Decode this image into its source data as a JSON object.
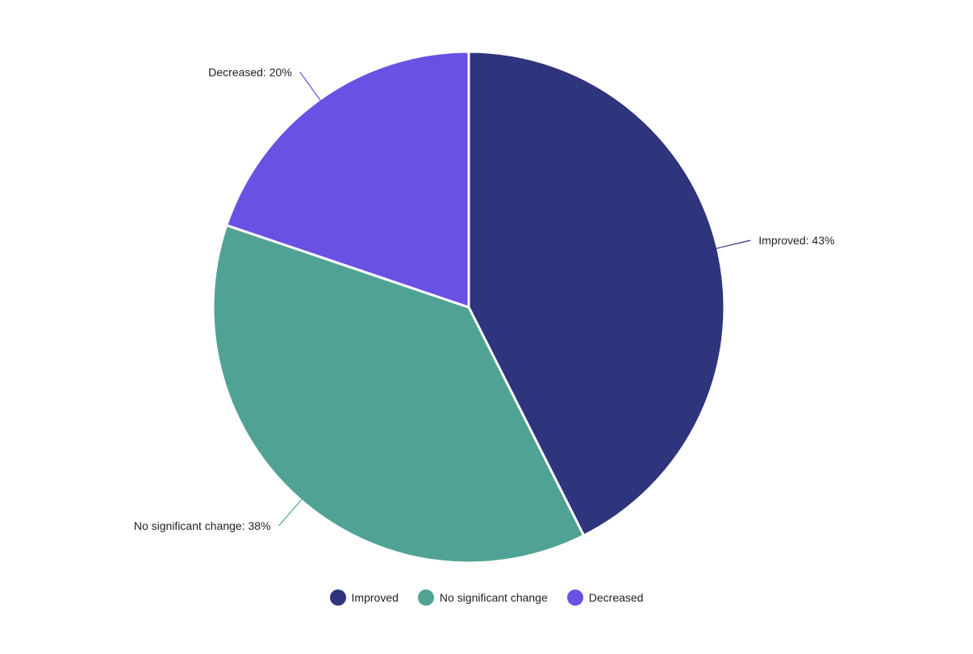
{
  "chart_data": {
    "type": "pie",
    "categories": [
      "Improved",
      "No significant change",
      "Decreased"
    ],
    "values": [
      43,
      38,
      20
    ],
    "unit": "%",
    "data_labels": [
      "Improved: 43%",
      "No significant change: 38%",
      "Decreased: 20%"
    ],
    "colors": [
      "#2e357c",
      "#50a394",
      "#6a51e3"
    ],
    "legend": {
      "position": "bottom",
      "items": [
        "Improved",
        "No significant change",
        "Decreased"
      ]
    }
  }
}
